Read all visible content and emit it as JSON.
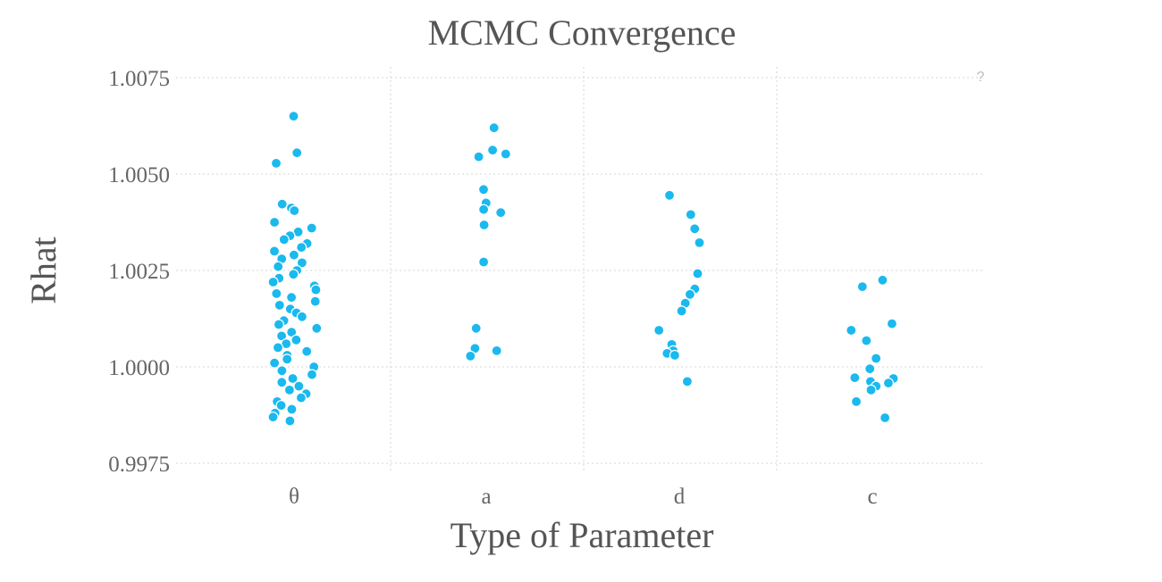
{
  "chart_data": {
    "type": "scatter",
    "title": "MCMC Convergence",
    "xlabel": "Type of Parameter",
    "ylabel": "Rhat",
    "categories": [
      "θ",
      "a",
      "d",
      "c"
    ],
    "yticks": [
      "1.0075",
      "1.0050",
      "1.0025",
      "1.0000",
      "0.9975"
    ],
    "ylim": [
      0.99725,
      1.0075
    ],
    "grid": true,
    "help_label": "?",
    "color": "#1ab9ee",
    "series": [
      {
        "category": "θ",
        "y": [
          1.0065,
          1.00555,
          1.00528,
          1.00422,
          1.00412,
          1.00405,
          1.00375,
          1.0036,
          1.0035,
          1.0034,
          1.0033,
          1.0032,
          1.0031,
          1.003,
          1.0029,
          1.0028,
          1.0027,
          1.0026,
          1.0025,
          1.0024,
          1.0023,
          1.0022,
          1.0021,
          1.002,
          1.0019,
          1.0018,
          1.0017,
          1.0016,
          1.0015,
          1.0014,
          1.0013,
          1.0012,
          1.0011,
          1.001,
          1.0009,
          1.0008,
          1.0007,
          1.0006,
          1.0005,
          1.0004,
          1.0003,
          1.0002,
          1.0001,
          1.0,
          0.9999,
          0.9998,
          0.9997,
          0.9996,
          0.9995,
          0.9994,
          0.9993,
          0.9992,
          0.9991,
          0.999,
          0.9989,
          0.9988,
          0.9987,
          0.9986
        ]
      },
      {
        "category": "a",
        "y": [
          1.0062,
          1.00562,
          1.00552,
          1.00545,
          1.0046,
          1.00425,
          1.00408,
          1.004,
          1.00368,
          1.00272,
          1.001,
          1.00048,
          1.00042,
          1.00028
        ]
      },
      {
        "category": "d",
        "y": [
          1.00445,
          1.00395,
          1.00358,
          1.00322,
          1.00242,
          1.00202,
          1.00188,
          1.00165,
          1.00145,
          1.00095,
          1.00058,
          1.00042,
          1.00035,
          1.0003,
          0.99962
        ]
      },
      {
        "category": "c",
        "y": [
          1.00225,
          1.00208,
          1.00112,
          1.00095,
          1.00068,
          1.00022,
          0.99995,
          0.99972,
          0.9997,
          0.99962,
          0.99958,
          0.9995,
          0.9994,
          0.9991,
          0.99868
        ]
      }
    ]
  }
}
